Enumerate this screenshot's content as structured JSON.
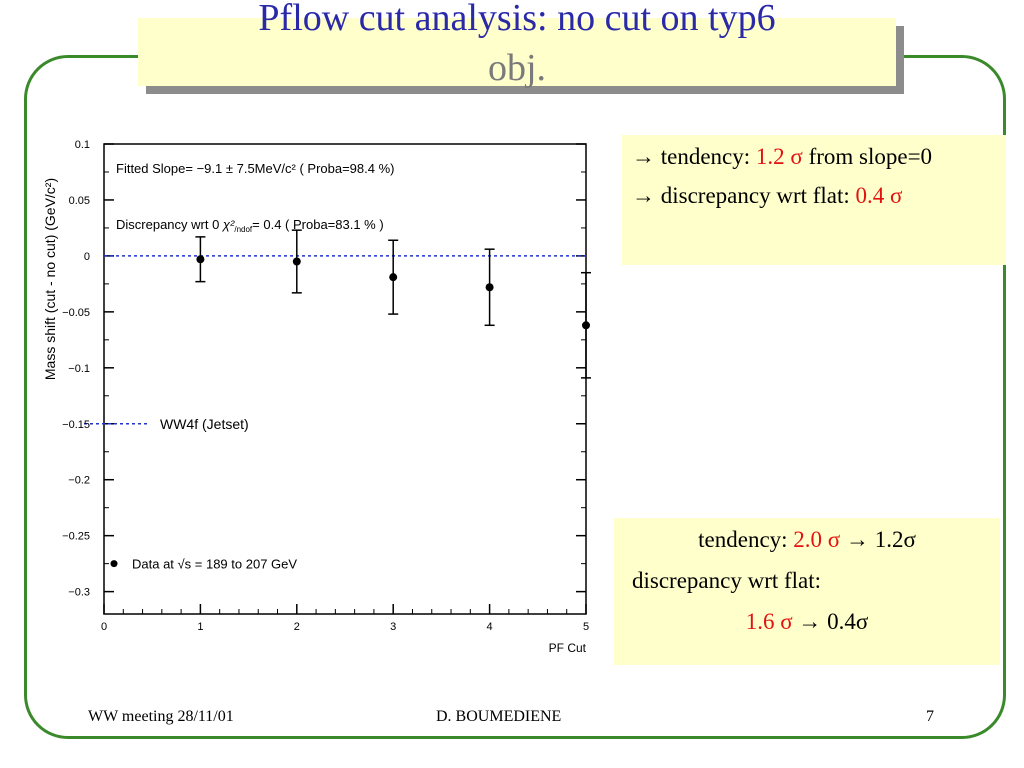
{
  "title": {
    "line1": "Pflow cut analysis: no cut on typ6",
    "line2": "obj."
  },
  "notes_top": {
    "arrow": "→",
    "line1_a": "tendency:",
    "line1_val": "1.2 σ",
    "line1_b": "from slope=0",
    "line2_a": "discrepancy wrt flat:",
    "line2_val": "0.4 σ"
  },
  "notes_bottom": {
    "tendency_label": "tendency:",
    "tendency_old": "2.0 σ",
    "tendency_arrow": "→",
    "tendency_new": "1.2σ",
    "discrepancy_label": "discrepancy wrt flat:",
    "discrepancy_old": "1.6 σ",
    "discrepancy_arrow": "→",
    "discrepancy_new": "0.4σ"
  },
  "footer": {
    "left": "WW meeting 28/11/01",
    "center": "D. BOUMEDIENE",
    "right": "7"
  },
  "colors": {
    "frame": "#3a8a2c",
    "title_text": "#2a2aa8",
    "note_bg": "#ffffcc",
    "highlight": "#e21212",
    "reference_line": "#2233cc"
  },
  "chart_data": {
    "type": "scatter",
    "xlabel": "PF Cut",
    "ylabel": "Mass shift (cut - no cut) (GeV/c²)",
    "xlim": [
      0,
      5
    ],
    "ylim": [
      -0.32,
      0.1
    ],
    "x_ticks": [
      "0",
      "1",
      "2",
      "3",
      "4",
      "5"
    ],
    "y_ticks": [
      "0.1",
      "0.05",
      "0",
      "−0.05",
      "−0.1",
      "−0.15",
      "−0.2",
      "−0.25",
      "−0.3"
    ],
    "y_tick_values": [
      0.1,
      0.05,
      0,
      -0.05,
      -0.1,
      -0.15,
      -0.2,
      -0.25,
      -0.3
    ],
    "series": [
      {
        "name": "Data at √s = 189 to 207 GeV",
        "x": [
          1,
          2,
          3,
          4,
          5
        ],
        "y": [
          -0.003,
          -0.005,
          -0.019,
          -0.028,
          -0.062
        ],
        "err": [
          0.02,
          0.028,
          0.033,
          0.034,
          0.047
        ]
      }
    ],
    "reference_line": {
      "y": 0,
      "name": "WW4f (Jetset)",
      "style": "dashed"
    },
    "annotations": {
      "fit": "Fitted Slope= −9.1 ± 7.5MeV/c² ( Proba=98.4 %)",
      "disc_a": "Discrepancy wrt 0",
      "disc_chi": "χ²",
      "disc_sub": "/ndof",
      "disc_b": "= 0.4 ( Proba=83.1 % )"
    }
  }
}
